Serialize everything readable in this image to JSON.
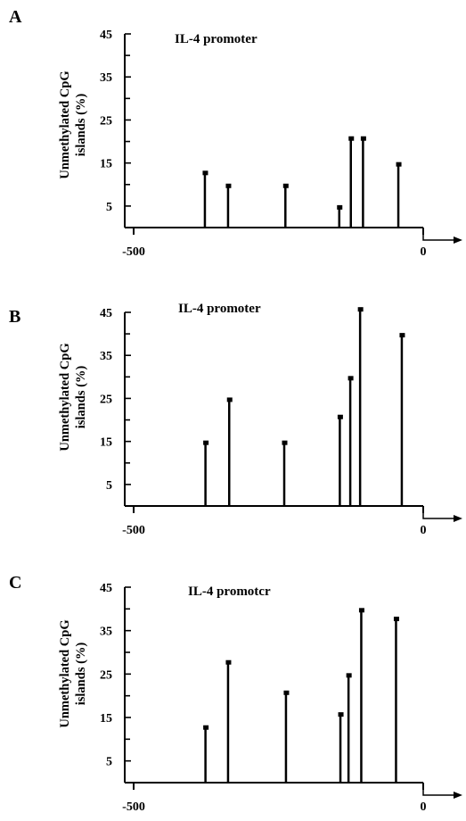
{
  "panels": [
    {
      "letter": "A",
      "title": "IL-4 promoter"
    },
    {
      "letter": "B",
      "title": "IL-4 promoter"
    },
    {
      "letter": "C",
      "title": "IL-4 promotcr"
    }
  ],
  "ylabel_line1": "Unmethylated CpG",
  "ylabel_line2": "islands (%)",
  "chart_data": [
    {
      "type": "bar",
      "title": "IL-4 promoter",
      "ylabel": "Unmethylated CpG islands (%)",
      "x_ticks": [
        "-500",
        "0"
      ],
      "y_ticks": [
        "45",
        "35",
        "25",
        "15",
        "5"
      ],
      "ylim": [
        0,
        45
      ],
      "xlim": [
        -500,
        0
      ],
      "x": [
        -377,
        -337,
        -238,
        -145,
        -125,
        -104,
        -43
      ],
      "values": [
        13,
        10,
        10,
        5,
        21,
        21,
        15
      ]
    },
    {
      "type": "bar",
      "title": "IL-4 promoter",
      "ylabel": "Unmethylated CpG islands (%)",
      "x_ticks": [
        "-500",
        "0"
      ],
      "y_ticks": [
        "45",
        "35",
        "25",
        "15",
        "5"
      ],
      "ylim": [
        0,
        45
      ],
      "xlim": [
        -500,
        0
      ],
      "x": [
        -376,
        -335,
        -240,
        -144,
        -126,
        -109,
        -37
      ],
      "values": [
        15,
        25,
        15,
        21,
        30,
        46,
        40
      ]
    },
    {
      "type": "bar",
      "title": "IL-4 promotcr",
      "ylabel": "Unmethylated CpG islands (%)",
      "x_ticks": [
        "-500",
        "0"
      ],
      "y_ticks": [
        "45",
        "35",
        "25",
        "15",
        "5"
      ],
      "ylim": [
        0,
        45
      ],
      "xlim": [
        -500,
        0
      ],
      "x": [
        -376,
        -337,
        -237,
        -143,
        -129,
        -107,
        -47
      ],
      "values": [
        13,
        28,
        21,
        16,
        25,
        40,
        38
      ]
    }
  ]
}
